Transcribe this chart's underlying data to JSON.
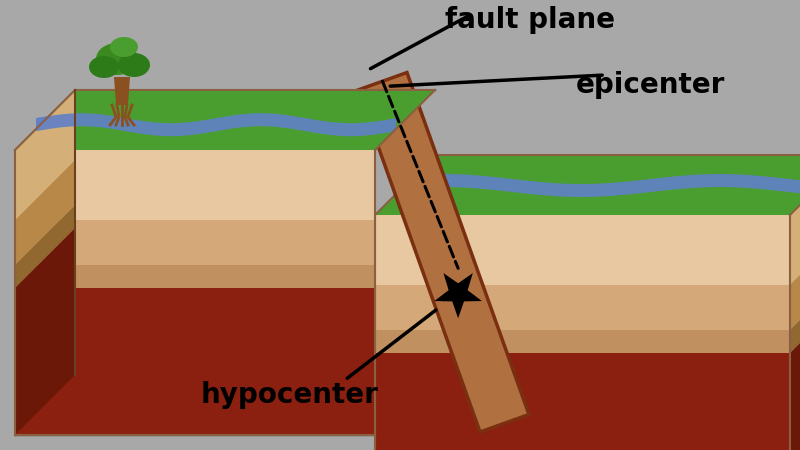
{
  "bg_color": "#a8a8a8",
  "figsize": [
    8.0,
    4.5
  ],
  "dpi": 100,
  "labels": {
    "fault_plane": "fault plane",
    "epicenter": "epicenter",
    "hypocenter": "hypocenter"
  },
  "label_fontsize": 20,
  "label_color": "#000000",
  "layer_colors_front": [
    "#e8c8a0",
    "#d4a878",
    "#c09060",
    "#8b2010"
  ],
  "layer_colors_front_r": [
    "#e8c8a0",
    "#d4a878",
    "#c09060",
    "#8b2010"
  ],
  "layer_colors_top": [
    "#4a9e30",
    "#4a9e30"
  ],
  "layer_colors_side": [
    "#d4b882",
    "#c09050",
    "#a87840",
    "#6b1808"
  ],
  "green_color": "#4a9e30",
  "river_color": "#6080c8",
  "tree_trunk": "#8b5020",
  "tree_green": "#2d7a18",
  "fault_color": "#b07040",
  "fault_edge": "#7a3010",
  "star_color": "#000000"
}
